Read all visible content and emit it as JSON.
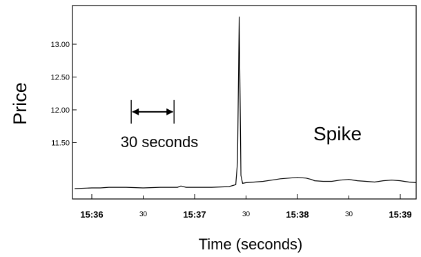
{
  "chart_data": {
    "type": "line",
    "xlabel": "Time (seconds)",
    "ylabel": "Price",
    "x_range_seconds": [
      0,
      200
    ],
    "ylim": [
      10.8,
      13.45
    ],
    "y_ticks": [
      {
        "value": 11.5,
        "label": "11.50"
      },
      {
        "value": 12.0,
        "label": "12.00"
      },
      {
        "value": 12.5,
        "label": "12.50"
      },
      {
        "value": 13.0,
        "label": "13.00"
      }
    ],
    "x_ticks": [
      {
        "t": 0,
        "label": "15:36",
        "major": true
      },
      {
        "t": 30,
        "label": "30",
        "major": false
      },
      {
        "t": 60,
        "label": "15:37",
        "major": true
      },
      {
        "t": 90,
        "label": "30",
        "major": false
      },
      {
        "t": 120,
        "label": "15:38",
        "major": true
      },
      {
        "t": 150,
        "label": "30",
        "major": false
      },
      {
        "t": 180,
        "label": "15:39",
        "major": true
      }
    ],
    "series": [
      {
        "t": [
          -10,
          0,
          5,
          10,
          15,
          20,
          30,
          40,
          50,
          52,
          55,
          60,
          70,
          80,
          84,
          85,
          86,
          87,
          88,
          90,
          95,
          100,
          105,
          110,
          115,
          120,
          125,
          128,
          130,
          135,
          140,
          145,
          150,
          155,
          160,
          165,
          170,
          175,
          180,
          185,
          190
        ],
        "price": [
          10.8,
          10.81,
          10.81,
          10.82,
          10.82,
          10.82,
          10.81,
          10.82,
          10.82,
          10.84,
          10.82,
          10.82,
          10.82,
          10.83,
          10.86,
          11.2,
          13.42,
          11.0,
          10.88,
          10.89,
          10.9,
          10.91,
          10.93,
          10.95,
          10.96,
          10.97,
          10.96,
          10.94,
          10.92,
          10.91,
          10.91,
          10.93,
          10.94,
          10.92,
          10.91,
          10.9,
          10.92,
          10.93,
          10.92,
          10.9,
          10.89
        ]
      }
    ],
    "annotations": [
      {
        "text": "30 seconds",
        "t_start": 23,
        "t_end": 48,
        "price": 11.97
      },
      {
        "text": "Spike"
      }
    ],
    "grid": false
  }
}
